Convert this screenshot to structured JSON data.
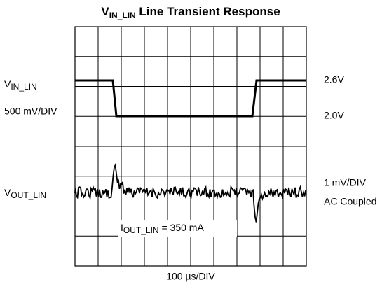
{
  "title": {
    "symbol": "V",
    "subscript": "IN_LIN",
    "text": " Line Transient Response"
  },
  "left_labels": {
    "vin_symbol": "V",
    "vin_subscript": "IN_LIN",
    "vin_scale": "500 mV/DIV",
    "vout_symbol": "V",
    "vout_subscript": "OUT_LIN"
  },
  "right_labels": {
    "vin_high": "2.6V",
    "vin_low": "2.0V",
    "vout_scale": "1 mV/DIV",
    "vout_coupling": "AC Coupled"
  },
  "annotation": {
    "symbol": "I",
    "subscript": "OUT_LIN",
    "text": " = 350 mA"
  },
  "time_scale": "100 µs/DIV"
}
